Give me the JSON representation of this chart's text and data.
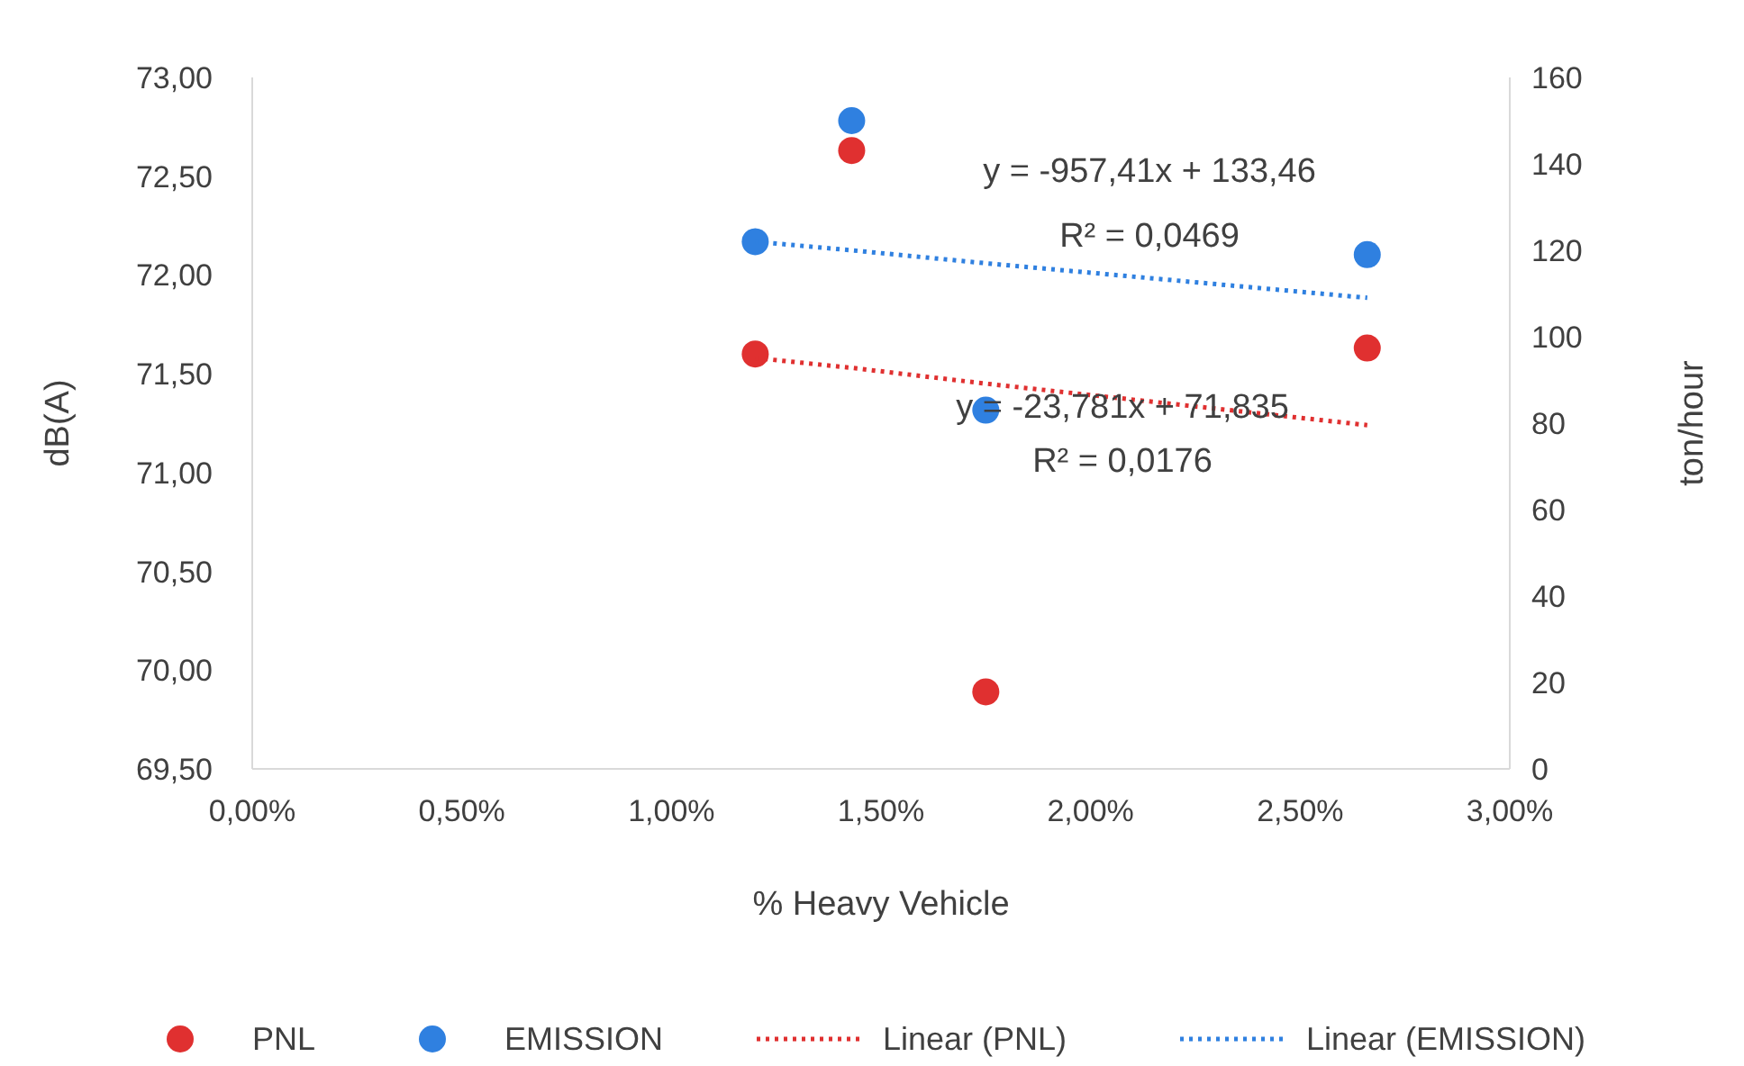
{
  "chart_data": {
    "type": "scatter",
    "xlabel": "% Heavy Vehicle",
    "ylabel": "dB(A)",
    "y2label": "ton/hour",
    "x": [
      0.012,
      0.0143,
      0.0175,
      0.0266
    ],
    "xlim": [
      0,
      0.03
    ],
    "xticks": [
      {
        "value": 0,
        "label": "0,00%"
      },
      {
        "value": 0.005,
        "label": "0,50%"
      },
      {
        "value": 0.01,
        "label": "1,00%"
      },
      {
        "value": 0.015,
        "label": "1,50%"
      },
      {
        "value": 0.02,
        "label": "2,00%"
      },
      {
        "value": 0.025,
        "label": "2,50%"
      },
      {
        "value": 0.03,
        "label": "3,00%"
      }
    ],
    "ylim": [
      69.5,
      73
    ],
    "yticks": [
      {
        "value": 69.5,
        "label": "69,50"
      },
      {
        "value": 70,
        "label": "70,00"
      },
      {
        "value": 70.5,
        "label": "70,50"
      },
      {
        "value": 71,
        "label": "71,00"
      },
      {
        "value": 71.5,
        "label": "71,50"
      },
      {
        "value": 72,
        "label": "72,00"
      },
      {
        "value": 72.5,
        "label": "72,50"
      },
      {
        "value": 73,
        "label": "73,00"
      }
    ],
    "y2lim": [
      0,
      160
    ],
    "y2ticks": [
      0,
      20,
      40,
      60,
      80,
      100,
      120,
      140,
      160
    ],
    "marker": "circle",
    "legend": "bottom",
    "series": [
      {
        "name": "PNL",
        "color": "#e03030",
        "values": [
          71.6,
          72.63,
          69.89,
          71.63
        ]
      },
      {
        "name": "EMISSION",
        "axis": "y2",
        "color": "#2f80e0",
        "values": [
          122,
          150,
          83,
          119
        ]
      },
      {
        "name": "Linear (PNL)",
        "type": "line",
        "marker": "none",
        "line_style": "dotted",
        "color": "#e03030",
        "values": [
          71.58,
          71.53,
          71.45,
          71.24
        ]
      },
      {
        "name": "Linear (EMISSION)",
        "type": "line",
        "axis": "y2",
        "marker": "none",
        "line_style": "dotted",
        "color": "#2f80e0",
        "values": [
          122,
          120,
          117,
          109
        ]
      }
    ],
    "annotations": [
      "y = -957,41x + 133,46",
      "R² = 0,0469",
      "y = -23,781x + 71,835",
      "R² = 0,0176"
    ]
  }
}
